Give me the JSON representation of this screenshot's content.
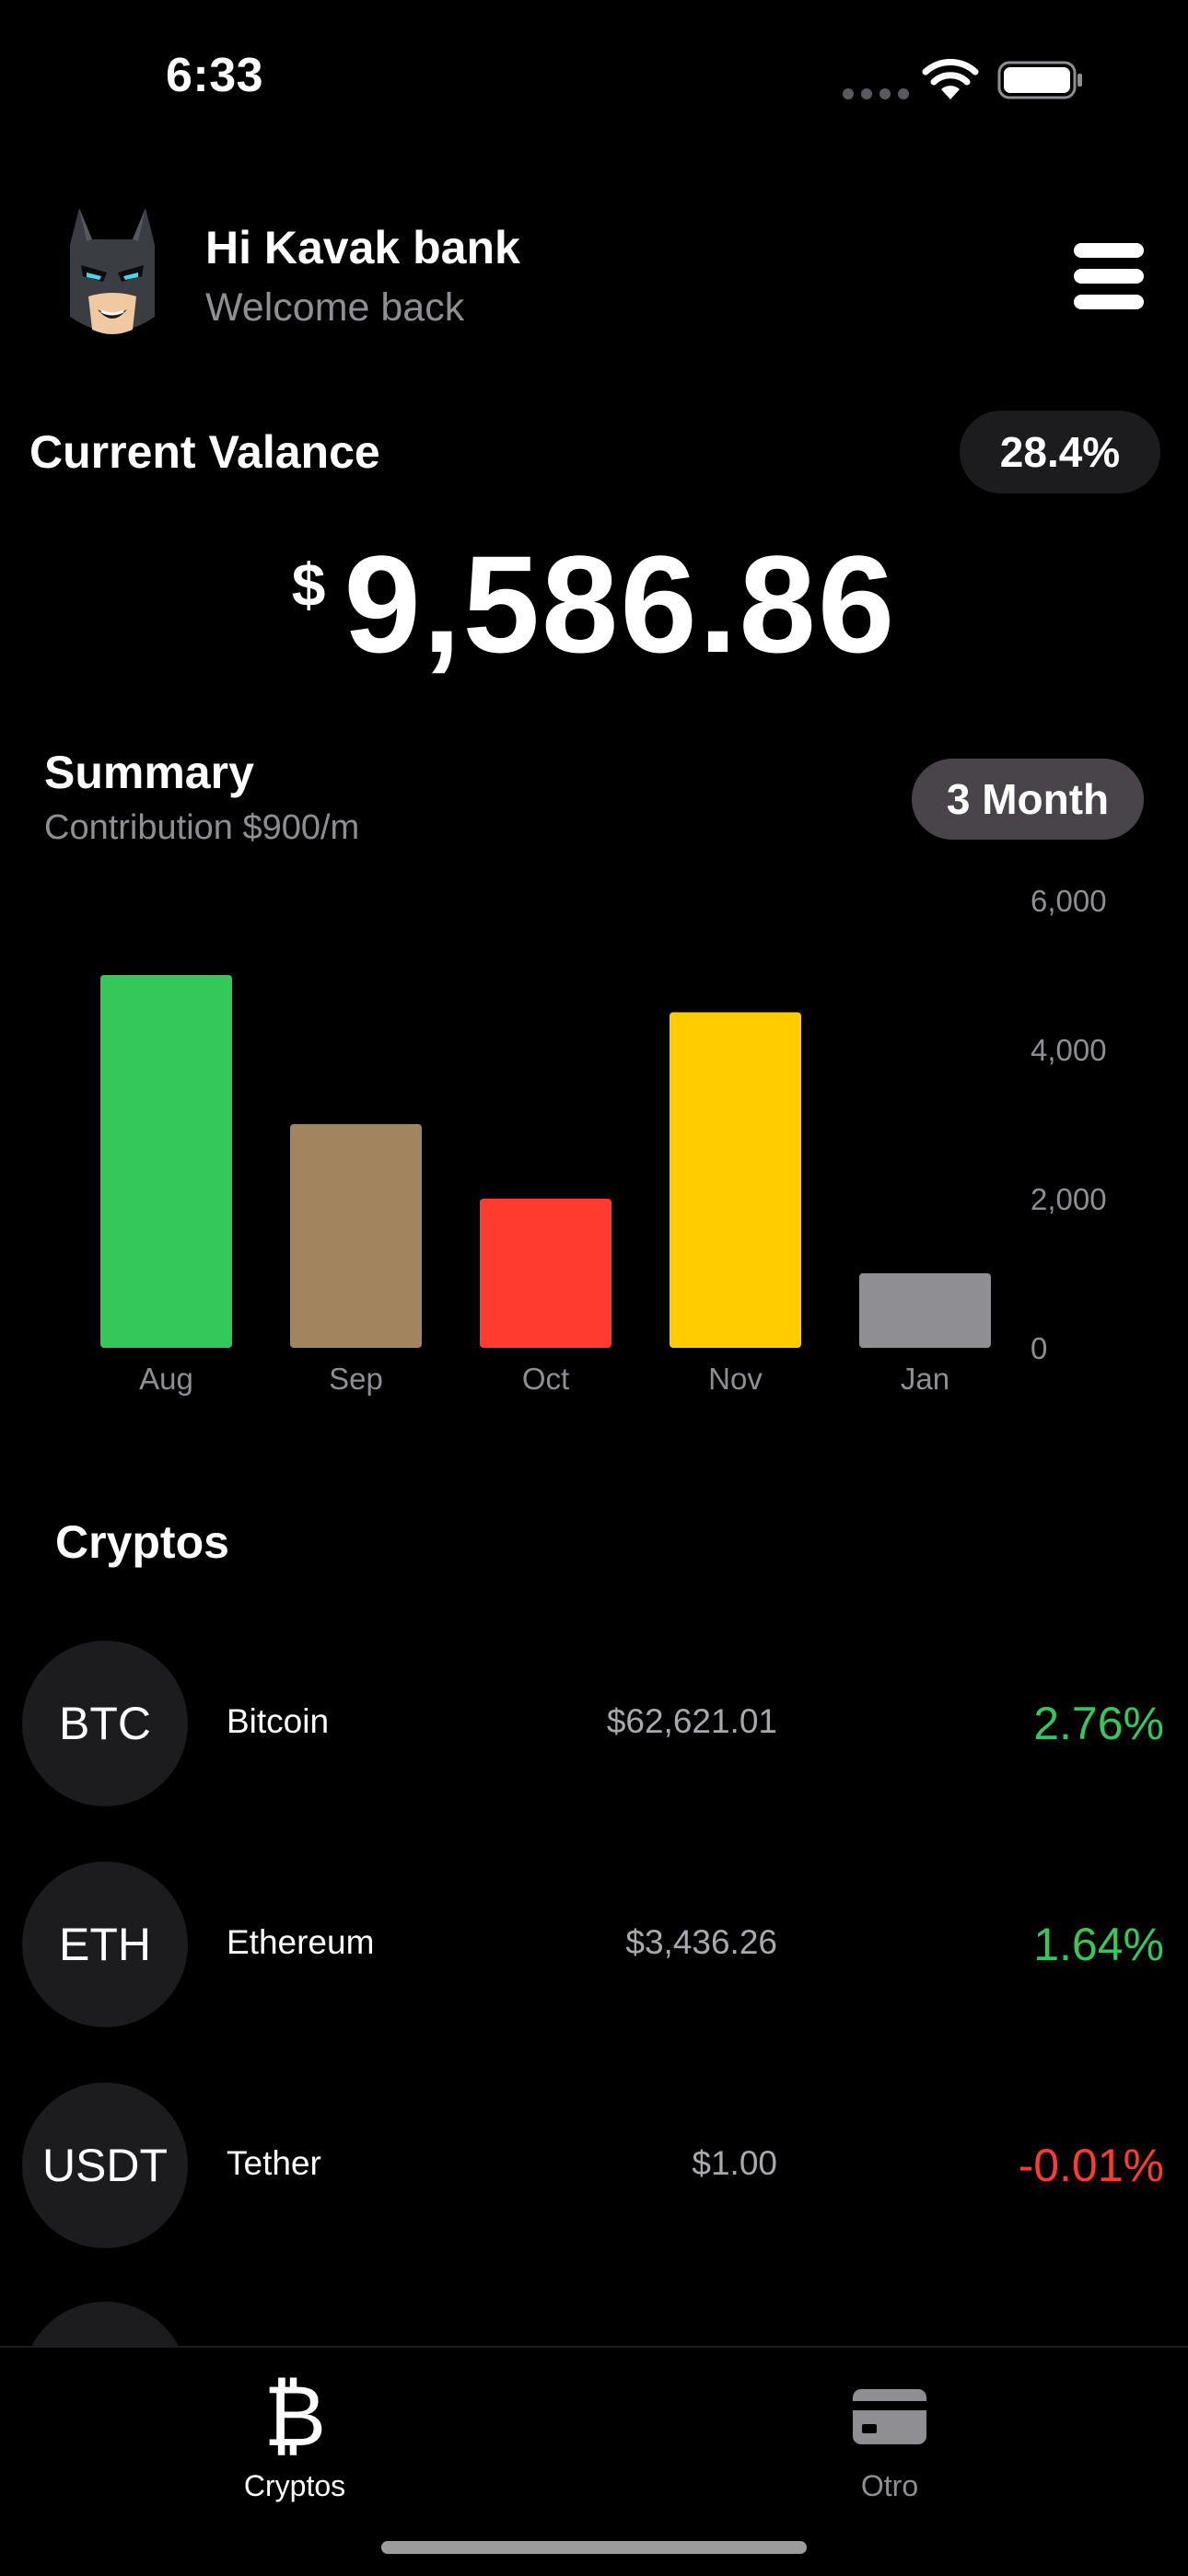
{
  "status_bar": {
    "time": "6:33"
  },
  "header": {
    "greeting": "Hi Kavak bank",
    "subtitle": "Welcome back"
  },
  "balance": {
    "label": "Current Valance",
    "percent": "28.4%",
    "currency": "$",
    "amount": "9,586.86"
  },
  "summary": {
    "title": "Summary",
    "subtitle": "Contribution $900/m",
    "period_label": "3 Month"
  },
  "chart_data": {
    "type": "bar",
    "categories": [
      "Aug",
      "Sep",
      "Oct",
      "Nov",
      "Jan"
    ],
    "values": [
      5000,
      3000,
      2000,
      4500,
      1000
    ],
    "colors": [
      "#34c759",
      "#a2845e",
      "#ff3b30",
      "#ffcc00",
      "#8e8e93"
    ],
    "y_ticks": [
      "6,000",
      "4,000",
      "2,000",
      "0"
    ],
    "ylim": [
      0,
      6000
    ],
    "y_axis_side": "right",
    "grid": false
  },
  "cryptos": {
    "title": "Cryptos",
    "items": [
      {
        "symbol": "BTC",
        "name": "Bitcoin",
        "price": "$62,621.01",
        "change": "2.76%",
        "color": "#34c759"
      },
      {
        "symbol": "ETH",
        "name": "Ethereum",
        "price": "$3,436.26",
        "change": "1.64%",
        "color": "#34c759"
      },
      {
        "symbol": "USDT",
        "name": "Tether",
        "price": "$1.00",
        "change": "-0.01%",
        "color": "#ff3b30"
      }
    ]
  },
  "tab_bar": {
    "tabs": [
      {
        "label": "Cryptos",
        "icon": "bitcoin-icon",
        "selected": true
      },
      {
        "label": "Otro",
        "icon": "credit-card-icon",
        "selected": false
      }
    ]
  }
}
